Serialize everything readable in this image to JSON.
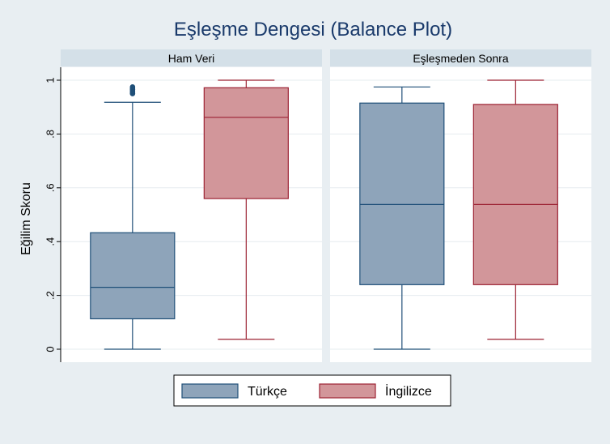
{
  "chart_data": {
    "type": "boxplot",
    "title": "Eşleşme Dengesi (Balance Plot)",
    "ylabel": "Eğilim Skoru",
    "ylim": [
      0,
      1
    ],
    "yticks": [
      0,
      0.2,
      0.4,
      0.6,
      0.8,
      1
    ],
    "ytick_labels": [
      "0",
      ".2",
      ".4",
      ".6",
      ".8",
      "1"
    ],
    "grid": true,
    "legend_position": "bottom",
    "series": [
      {
        "name": "Türkçe",
        "color": "#8ea4ba",
        "edge": "#1f4f78"
      },
      {
        "name": "İngilizce",
        "color": "#d2969a",
        "edge": "#9c2233"
      }
    ],
    "panels": [
      {
        "title": "Ham Veri",
        "boxes": [
          {
            "series": "Türkçe",
            "q1": 0.113,
            "median": 0.23,
            "q3": 0.433,
            "whisker_low": 0.0,
            "whisker_high": 0.918,
            "outliers": [
              0.95,
              0.955,
              0.96,
              0.965,
              0.97,
              0.975
            ]
          },
          {
            "series": "İngilizce",
            "q1": 0.56,
            "median": 0.862,
            "q3": 0.972,
            "whisker_low": 0.037,
            "whisker_high": 1.0,
            "outliers": []
          }
        ]
      },
      {
        "title": "Eşleşmeden Sonra",
        "boxes": [
          {
            "series": "Türkçe",
            "q1": 0.24,
            "median": 0.538,
            "q3": 0.915,
            "whisker_low": 0.0,
            "whisker_high": 0.975,
            "outliers": []
          },
          {
            "series": "İngilizce",
            "q1": 0.24,
            "median": 0.538,
            "q3": 0.91,
            "whisker_low": 0.037,
            "whisker_high": 1.0,
            "outliers": []
          }
        ]
      }
    ]
  }
}
